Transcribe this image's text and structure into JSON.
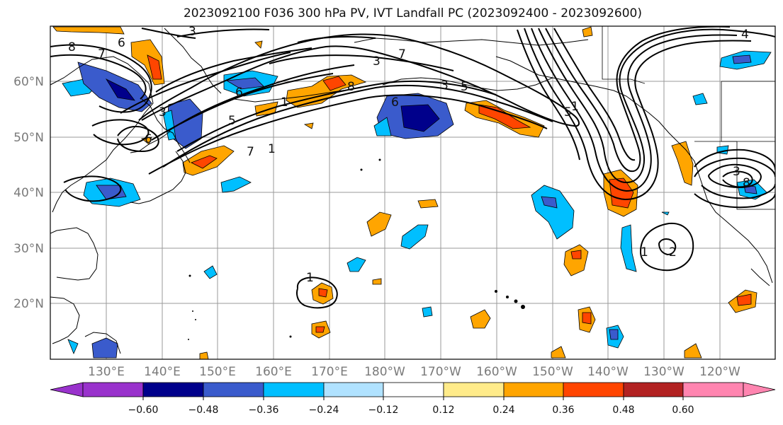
{
  "title": "2023092100 F036 300 hPa PV, IVT Landfall PC (2023092400 - 2023092600)",
  "map": {
    "type": "contour-map",
    "lat_labels": [
      "60°N",
      "50°N",
      "40°N",
      "30°N",
      "20°N"
    ],
    "lat_values": [
      60,
      50,
      40,
      30,
      20
    ],
    "lon_labels": [
      "130°E",
      "140°E",
      "150°E",
      "160°E",
      "170°E",
      "180°W",
      "170°W",
      "160°W",
      "150°W",
      "140°W",
      "130°W",
      "120°W"
    ],
    "lon_values": [
      130,
      140,
      150,
      160,
      170,
      180,
      190,
      200,
      210,
      220,
      230,
      240
    ],
    "extent": {
      "lon": [
        120,
        250
      ],
      "lat": [
        10,
        70
      ]
    },
    "grid": true
  },
  "colorbar": {
    "ticks": [
      "−0.60",
      "−0.48",
      "−0.36",
      "−0.24",
      "−0.12",
      "0.12",
      "0.24",
      "0.36",
      "0.48",
      "0.60"
    ],
    "colors": [
      "#9932CC",
      "#00008B",
      "#3A5BCC",
      "#00BFFF",
      "#B0E2FF",
      "#FFFFFF",
      "#FFEB8A",
      "#FFA500",
      "#FF4500",
      "#B22222",
      "#FF85B0"
    ]
  },
  "pv_contour_labels": [
    "3",
    "8",
    "7",
    "6",
    "3",
    "6",
    "5",
    "1",
    "6",
    "7",
    "1",
    "8",
    "3",
    "6",
    "5",
    "7",
    "3",
    "5",
    "1",
    "4",
    "3",
    "8",
    "1",
    "2",
    "1"
  ]
}
